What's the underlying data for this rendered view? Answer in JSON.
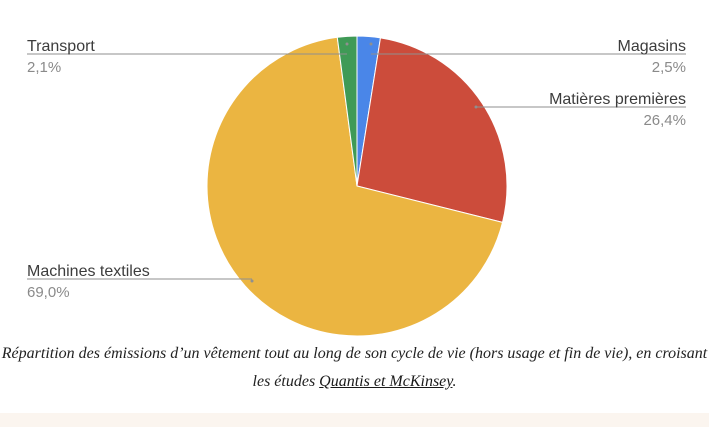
{
  "chart_data": {
    "type": "pie",
    "title": "",
    "slices": [
      {
        "label": "Magasins",
        "value": 2.5,
        "value_label": "2,5%",
        "color": "#4a86e8"
      },
      {
        "label": "Matières premières",
        "value": 26.4,
        "value_label": "26,4%",
        "color": "#cc4c3b"
      },
      {
        "label": "Machines textiles",
        "value": 69.0,
        "value_label": "69,0%",
        "color": "#ebb541"
      },
      {
        "label": "Transport",
        "value": 2.1,
        "value_label": "2,1%",
        "color": "#3f9a56"
      }
    ],
    "start_angle_deg": 0,
    "direction": "clockwise",
    "legend": "none"
  },
  "caption": {
    "text": "Répartition des émissions d’un vêtement tout au long de son cycle de vie (hors usage et fin de vie), en croisant les études ",
    "link_text": "Quantis et McKinsey",
    "suffix": "."
  }
}
